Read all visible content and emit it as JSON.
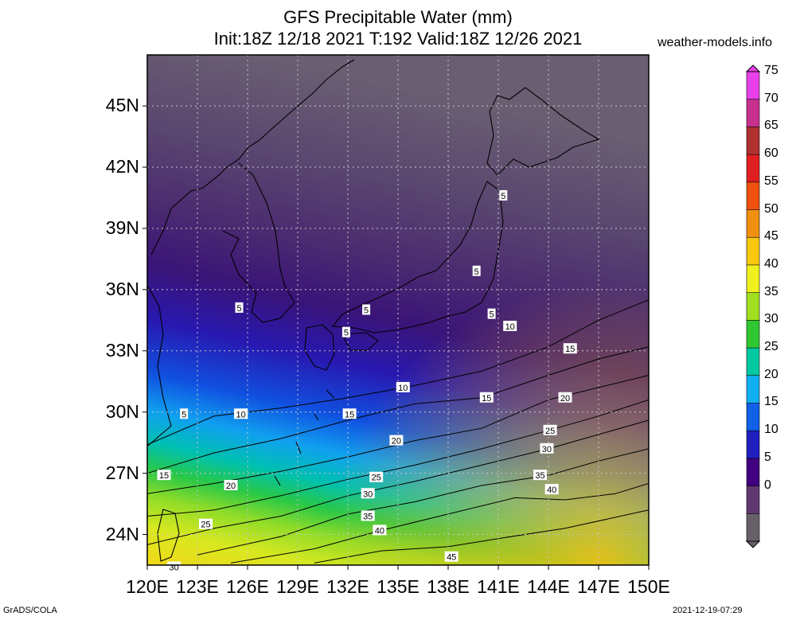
{
  "title": {
    "line1": "GFS Precipitable Water (mm)",
    "line2": "Init:18Z 12/18 2021 T:192 Valid:18Z 12/26 2021"
  },
  "site": "weather-models.info",
  "footer": {
    "left": "GrADS/COLA",
    "right": "2021-12-19-07:29"
  },
  "lat_labels": [
    "45N",
    "42N",
    "39N",
    "36N",
    "33N",
    "30N",
    "27N",
    "24N"
  ],
  "lon_labels": [
    "120E",
    "123E",
    "126E",
    "129E",
    "132E",
    "135E",
    "138E",
    "141E",
    "144E",
    "147E",
    "150E"
  ],
  "colorbar": {
    "labels": [
      "75",
      "70",
      "65",
      "60",
      "55",
      "50",
      "45",
      "40",
      "35",
      "30",
      "25",
      "20",
      "15",
      "10",
      "5",
      "0"
    ],
    "colors": [
      "#e840e8",
      "#c83090",
      "#b03030",
      "#e02020",
      "#f05010",
      "#f09010",
      "#f8c810",
      "#f0f020",
      "#a0e020",
      "#30c830",
      "#00c8a0",
      "#10b0f0",
      "#1060e8",
      "#2020c0",
      "#400080",
      "#603870",
      "#686068"
    ]
  },
  "contour_labels": [
    {
      "text": "5",
      "lon": 141.3,
      "lat": 40.6
    },
    {
      "text": "5",
      "lon": 139.7,
      "lat": 36.9
    },
    {
      "text": "5",
      "lon": 140.6,
      "lat": 34.8
    },
    {
      "text": "5",
      "lon": 133.1,
      "lat": 35.0
    },
    {
      "text": "5",
      "lon": 131.9,
      "lat": 33.9
    },
    {
      "text": "5",
      "lon": 125.5,
      "lat": 35.1
    },
    {
      "text": "5",
      "lon": 122.2,
      "lat": 29.9
    },
    {
      "text": "10",
      "lon": 141.7,
      "lat": 34.2
    },
    {
      "text": "10",
      "lon": 135.3,
      "lat": 31.2
    },
    {
      "text": "10",
      "lon": 125.6,
      "lat": 29.9
    },
    {
      "text": "15",
      "lon": 145.3,
      "lat": 33.1
    },
    {
      "text": "15",
      "lon": 140.3,
      "lat": 30.7
    },
    {
      "text": "15",
      "lon": 132.1,
      "lat": 29.9
    },
    {
      "text": "15",
      "lon": 121.0,
      "lat": 26.9
    },
    {
      "text": "20",
      "lon": 145.0,
      "lat": 30.7
    },
    {
      "text": "20",
      "lon": 134.9,
      "lat": 28.6
    },
    {
      "text": "20",
      "lon": 125.0,
      "lat": 26.4
    },
    {
      "text": "25",
      "lon": 144.1,
      "lat": 29.1
    },
    {
      "text": "25",
      "lon": 133.7,
      "lat": 26.8
    },
    {
      "text": "25",
      "lon": 123.5,
      "lat": 24.5
    },
    {
      "text": "30",
      "lon": 143.9,
      "lat": 28.2
    },
    {
      "text": "30",
      "lon": 133.2,
      "lat": 26.0
    },
    {
      "text": "30",
      "lon": 121.6,
      "lat": 22.4
    },
    {
      "text": "35",
      "lon": 143.5,
      "lat": 26.9
    },
    {
      "text": "35",
      "lon": 133.2,
      "lat": 24.9
    },
    {
      "text": "40",
      "lon": 144.2,
      "lat": 26.2
    },
    {
      "text": "40",
      "lon": 133.9,
      "lat": 24.2
    },
    {
      "text": "45",
      "lon": 138.2,
      "lat": 22.9
    }
  ]
}
